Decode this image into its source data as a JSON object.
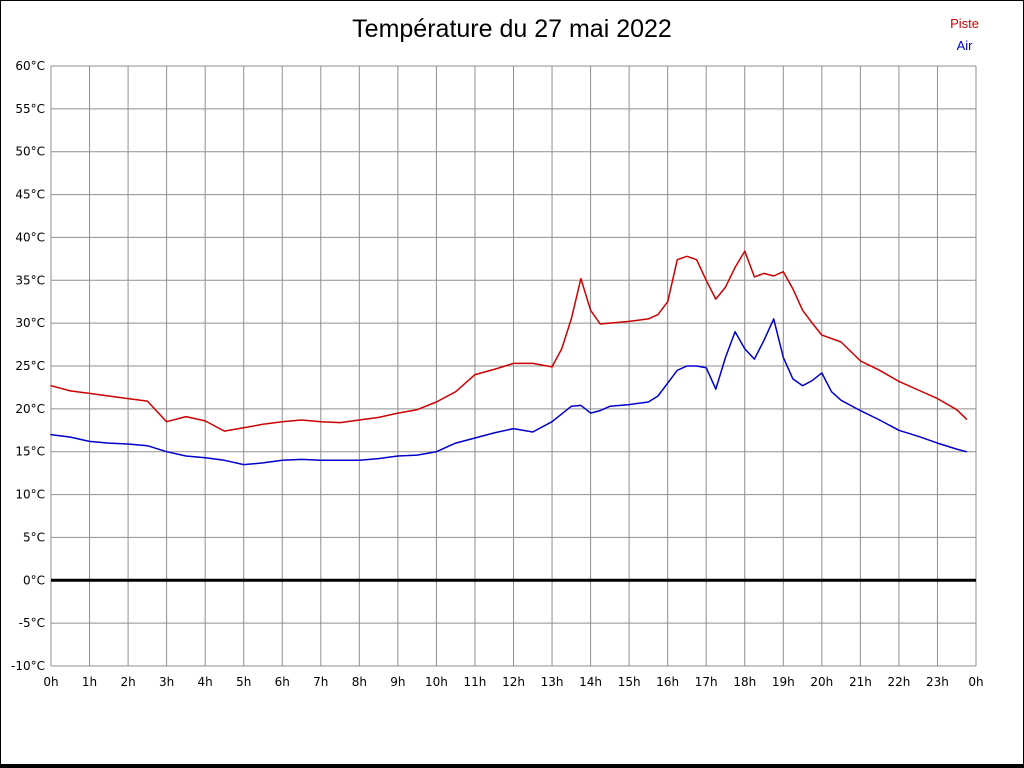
{
  "chart": {
    "title": "Température du 27 mai 2022",
    "legend": {
      "piste_label": "Piste",
      "air_label": "Air"
    }
  },
  "chart_data": {
    "type": "line",
    "title": "Température du 27 mai 2022",
    "xlabel": "",
    "ylabel": "",
    "xlim": [
      0,
      24
    ],
    "ylim": [
      -10,
      60
    ],
    "grid": true,
    "grid_color": "#8f8f8f",
    "zero_line": {
      "value": 0,
      "color": "#000000",
      "width": 3
    },
    "legend_position": "top-right",
    "y_ticks": [
      {
        "value": 60,
        "label": "60°C"
      },
      {
        "value": 55,
        "label": "55°C"
      },
      {
        "value": 50,
        "label": "50°C"
      },
      {
        "value": 45,
        "label": "45°C"
      },
      {
        "value": 40,
        "label": "40°C"
      },
      {
        "value": 35,
        "label": "35°C"
      },
      {
        "value": 30,
        "label": "30°C"
      },
      {
        "value": 25,
        "label": "25°C"
      },
      {
        "value": 20,
        "label": "20°C"
      },
      {
        "value": 15,
        "label": "15°C"
      },
      {
        "value": 10,
        "label": "10°C"
      },
      {
        "value": 5,
        "label": "5°C"
      },
      {
        "value": 0,
        "label": "0°C"
      },
      {
        "value": -5,
        "label": "-5°C"
      },
      {
        "value": -10,
        "label": "-10°C"
      }
    ],
    "x_ticks": [
      {
        "value": 0,
        "label": "0h"
      },
      {
        "value": 1,
        "label": "1h"
      },
      {
        "value": 2,
        "label": "2h"
      },
      {
        "value": 3,
        "label": "3h"
      },
      {
        "value": 4,
        "label": "4h"
      },
      {
        "value": 5,
        "label": "5h"
      },
      {
        "value": 6,
        "label": "6h"
      },
      {
        "value": 7,
        "label": "7h"
      },
      {
        "value": 8,
        "label": "8h"
      },
      {
        "value": 9,
        "label": "9h"
      },
      {
        "value": 10,
        "label": "10h"
      },
      {
        "value": 11,
        "label": "11h"
      },
      {
        "value": 12,
        "label": "12h"
      },
      {
        "value": 13,
        "label": "13h"
      },
      {
        "value": 14,
        "label": "14h"
      },
      {
        "value": 15,
        "label": "15h"
      },
      {
        "value": 16,
        "label": "16h"
      },
      {
        "value": 17,
        "label": "17h"
      },
      {
        "value": 18,
        "label": "18h"
      },
      {
        "value": 19,
        "label": "19h"
      },
      {
        "value": 20,
        "label": "20h"
      },
      {
        "value": 21,
        "label": "21h"
      },
      {
        "value": 22,
        "label": "22h"
      },
      {
        "value": 23,
        "label": "23h"
      },
      {
        "value": 24,
        "label": "0h"
      }
    ],
    "series": [
      {
        "name": "Piste",
        "color": "#cc0000",
        "x": [
          0,
          0.5,
          1,
          1.5,
          2,
          2.5,
          3,
          3.5,
          4,
          4.5,
          5,
          5.5,
          6,
          6.5,
          7,
          7.5,
          8,
          8.5,
          9,
          9.5,
          10,
          10.5,
          11,
          11.5,
          12,
          12.5,
          13,
          13.25,
          13.5,
          13.75,
          14,
          14.25,
          14.5,
          15,
          15.5,
          15.75,
          16,
          16.25,
          16.5,
          16.75,
          17,
          17.25,
          17.5,
          17.75,
          18,
          18.25,
          18.5,
          18.75,
          19,
          19.25,
          19.5,
          19.75,
          20,
          20.5,
          21,
          21.5,
          22,
          22.5,
          23,
          23.5,
          23.75
        ],
        "values": [
          22.7,
          22.1,
          21.8,
          21.5,
          21.2,
          20.9,
          18.5,
          19.1,
          18.6,
          17.4,
          17.8,
          18.2,
          18.5,
          18.7,
          18.5,
          18.4,
          18.7,
          19,
          19.5,
          19.9,
          20.8,
          22,
          24,
          24.6,
          25.3,
          25.3,
          24.9,
          27,
          30.5,
          35.2,
          31.5,
          29.9,
          30,
          30.2,
          30.5,
          31,
          32.5,
          37.4,
          37.8,
          37.4,
          35,
          32.8,
          34.2,
          36.5,
          38.4,
          35.4,
          35.8,
          35.5,
          36,
          34,
          31.5,
          30,
          28.6,
          27.8,
          25.6,
          24.5,
          23.2,
          22.2,
          21.2,
          19.9,
          18.8
        ]
      },
      {
        "name": "Air",
        "color": "#0000cc",
        "x": [
          0,
          0.5,
          1,
          1.5,
          2,
          2.5,
          3,
          3.5,
          4,
          4.5,
          5,
          5.5,
          6,
          6.5,
          7,
          7.5,
          8,
          8.5,
          9,
          9.5,
          10,
          10.5,
          11,
          11.5,
          12,
          12.5,
          13,
          13.5,
          13.75,
          14,
          14.25,
          14.5,
          15,
          15.5,
          15.75,
          16,
          16.25,
          16.5,
          16.75,
          17,
          17.25,
          17.5,
          17.75,
          18,
          18.25,
          18.5,
          18.75,
          19,
          19.25,
          19.5,
          19.75,
          20,
          20.25,
          20.5,
          21,
          21.5,
          22,
          22.5,
          23,
          23.5,
          23.75
        ],
        "values": [
          17,
          16.7,
          16.2,
          16,
          15.9,
          15.7,
          15,
          14.5,
          14.3,
          14,
          13.5,
          13.7,
          14,
          14.1,
          14,
          14,
          14,
          14.2,
          14.5,
          14.6,
          15,
          16,
          16.6,
          17.2,
          17.7,
          17.3,
          18.5,
          20.3,
          20.4,
          19.5,
          19.8,
          20.3,
          20.5,
          20.8,
          21.5,
          23,
          24.5,
          25,
          25,
          24.8,
          22.3,
          26,
          29,
          27,
          25.8,
          28,
          30.5,
          26,
          23.5,
          22.7,
          23.3,
          24.2,
          22,
          21,
          19.8,
          18.7,
          17.5,
          16.8,
          16,
          15.3,
          15
        ]
      }
    ]
  }
}
